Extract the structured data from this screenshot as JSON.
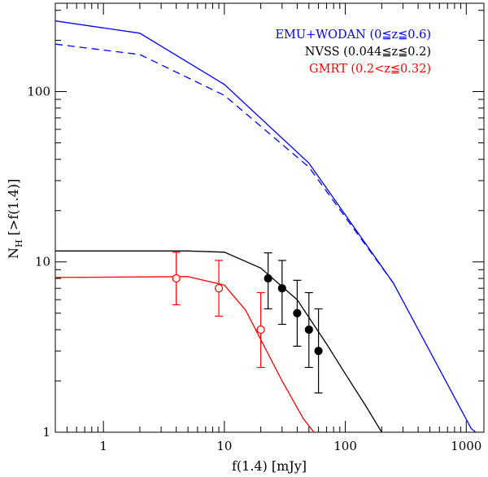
{
  "chart_data": {
    "type": "line",
    "xscale": "log",
    "yscale": "log",
    "xlim": [
      0.4,
      1400
    ],
    "ylim": [
      1,
      330
    ],
    "xlabel": "f(1.4)  [mJy]",
    "ylabel": {
      "main": "N",
      "sub": "H",
      "rest": "  [>f(1.4)]"
    },
    "x_ticks": [
      {
        "value": 1,
        "label": "1"
      },
      {
        "value": 10,
        "label": "10"
      },
      {
        "value": 100,
        "label": "100"
      },
      {
        "value": 1000,
        "label": "1000"
      }
    ],
    "y_ticks": [
      {
        "value": 1,
        "label": "1"
      },
      {
        "value": 10,
        "label": "10"
      },
      {
        "value": 100,
        "label": "100"
      }
    ],
    "legend": {
      "placement": "top-right",
      "entries": [
        {
          "text": "EMU+WODAN (0≦z≦0.6)",
          "color": "#0000ff"
        },
        {
          "text": "NVSS (0.044≦z≦0.2)",
          "color": "#000000"
        },
        {
          "text": "GMRT (0.2<z≦0.32)",
          "color": "#ff0000"
        }
      ]
    },
    "series": [
      {
        "name": "EMU+WODAN solid",
        "color": "#0000ff",
        "dash": false,
        "x": [
          0.4,
          2,
          10,
          50,
          250,
          1100,
          1200
        ],
        "y": [
          260,
          220,
          110,
          38,
          7.5,
          1.05,
          1
        ]
      },
      {
        "name": "EMU+WODAN dashed",
        "color": "#0000ff",
        "dash": true,
        "x": [
          0.4,
          2,
          10,
          50,
          250
        ],
        "y": [
          190,
          165,
          95,
          36,
          7.5
        ]
      },
      {
        "name": "NVSS model",
        "color": "#000000",
        "dash": false,
        "x": [
          0.4,
          5,
          10,
          20,
          40,
          70,
          100,
          150,
          200
        ],
        "y": [
          11.6,
          11.6,
          11.4,
          9.2,
          6,
          3.3,
          2.2,
          1.4,
          1
        ]
      },
      {
        "name": "GMRT model",
        "color": "#ff0000",
        "dash": false,
        "x": [
          0.4,
          5,
          10,
          15,
          20,
          30,
          45,
          55
        ],
        "y": [
          8.1,
          8.2,
          7.3,
          5.2,
          3.5,
          2.0,
          1.2,
          1
        ]
      }
    ],
    "points": [
      {
        "name": "NVSS data",
        "color": "#000000",
        "marker": "filled-circle",
        "x": [
          23,
          30,
          40,
          50,
          60
        ],
        "y": [
          8,
          7,
          5,
          4,
          3
        ],
        "yerr_low": [
          5.3,
          4.3,
          3.2,
          2.4,
          1.7
        ],
        "yerr_high": [
          11.3,
          10.2,
          7.8,
          6.6,
          5.3
        ]
      },
      {
        "name": "GMRT data",
        "color": "#ff0000",
        "marker": "open-circle",
        "x": [
          4,
          9,
          20
        ],
        "y": [
          8,
          7,
          4
        ],
        "yerr_low": [
          5.6,
          4.8,
          2.4
        ],
        "yerr_high": [
          11.4,
          10.2,
          6.6
        ]
      }
    ]
  }
}
